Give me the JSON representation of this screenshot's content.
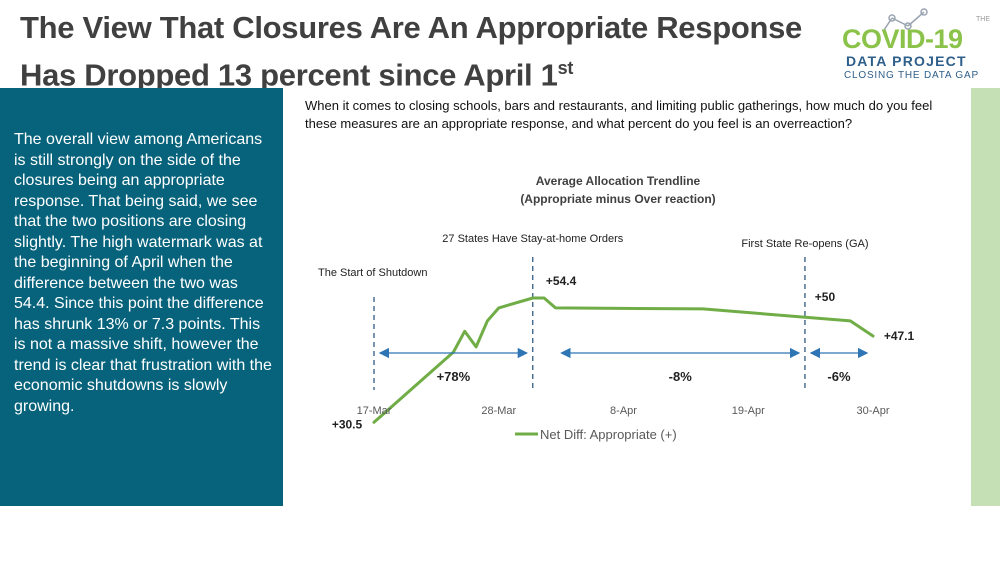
{
  "slide": {
    "title": "The View That Closures Are An Appropriate Response Has Dropped 13 percent since April 1",
    "title_sup": "st",
    "body_text": "The overall view among Americans is still strongly on the side of the closures being an appropriate response. That being said, we see that the two positions are closing slightly. The high watermark was at the beginning of  April when the difference between the two was 54.4. Since this point the difference has shrunk 13% or 7.3 points. This is not a massive shift, however the trend is clear that frustration with the economic shutdowns is slowly growing.",
    "question": "When it comes to closing schools, bars and restaurants, and limiting public gatherings, how much do you feel these measures are an appropriate response, and what percent do you feel is an overreaction?",
    "colors": {
      "panel": "#07637b",
      "strip": "#c5e0b4",
      "line": "#70ad47",
      "arrow": "#2e75b6",
      "title": "#404040"
    }
  },
  "logo": {
    "top": "THE",
    "line1": "COVID-19",
    "line2": "DATA PROJECT",
    "line3": "CLOSING THE DATA GAP"
  },
  "chart_data": {
    "type": "line",
    "title": "Average Allocation Trendline",
    "subtitle": "(Appropriate minus Over reaction)",
    "x_ticks": [
      "17-Mar",
      "28-Mar",
      "8-Apr",
      "19-Apr",
      "30-Apr"
    ],
    "xlim": [
      "2020-03-17",
      "2020-04-30"
    ],
    "grid": false,
    "legend": "bottom",
    "series": [
      {
        "name": "Net Diff: Appropriate (+)",
        "points": [
          [
            "2020-03-17",
            30.5
          ],
          [
            "2020-03-24",
            44.0
          ],
          [
            "2020-03-25",
            48.0
          ],
          [
            "2020-03-26",
            45.0
          ],
          [
            "2020-03-27",
            50.0
          ],
          [
            "2020-03-28",
            52.5
          ],
          [
            "2020-03-31",
            54.4
          ],
          [
            "2020-04-01",
            54.4
          ],
          [
            "2020-04-02",
            52.5
          ],
          [
            "2020-04-15",
            52.3
          ],
          [
            "2020-04-28",
            50.0
          ],
          [
            "2020-04-30",
            47.1
          ]
        ]
      }
    ],
    "annotations": {
      "events": [
        {
          "date": "2020-03-17",
          "label": "The Start of Shutdown"
        },
        {
          "date": "2020-03-31",
          "label": "27 States Have Stay-at-home Orders"
        },
        {
          "date": "2020-04-24",
          "label": "First State Re-opens (GA)"
        }
      ],
      "value_labels": [
        {
          "date": "2020-03-17",
          "text": "+30.5"
        },
        {
          "date": "2020-04-01",
          "text": "+54.4"
        },
        {
          "date": "2020-04-24",
          "text": "+50"
        },
        {
          "date": "2020-04-30",
          "text": "+47.1"
        }
      ],
      "changes": [
        {
          "from": "2020-03-17",
          "to": "2020-03-31",
          "text": "+78%"
        },
        {
          "from": "2020-04-02",
          "to": "2020-04-24",
          "text": "-8%"
        },
        {
          "from": "2020-04-24",
          "to": "2020-04-30",
          "text": "-6%"
        }
      ]
    }
  }
}
